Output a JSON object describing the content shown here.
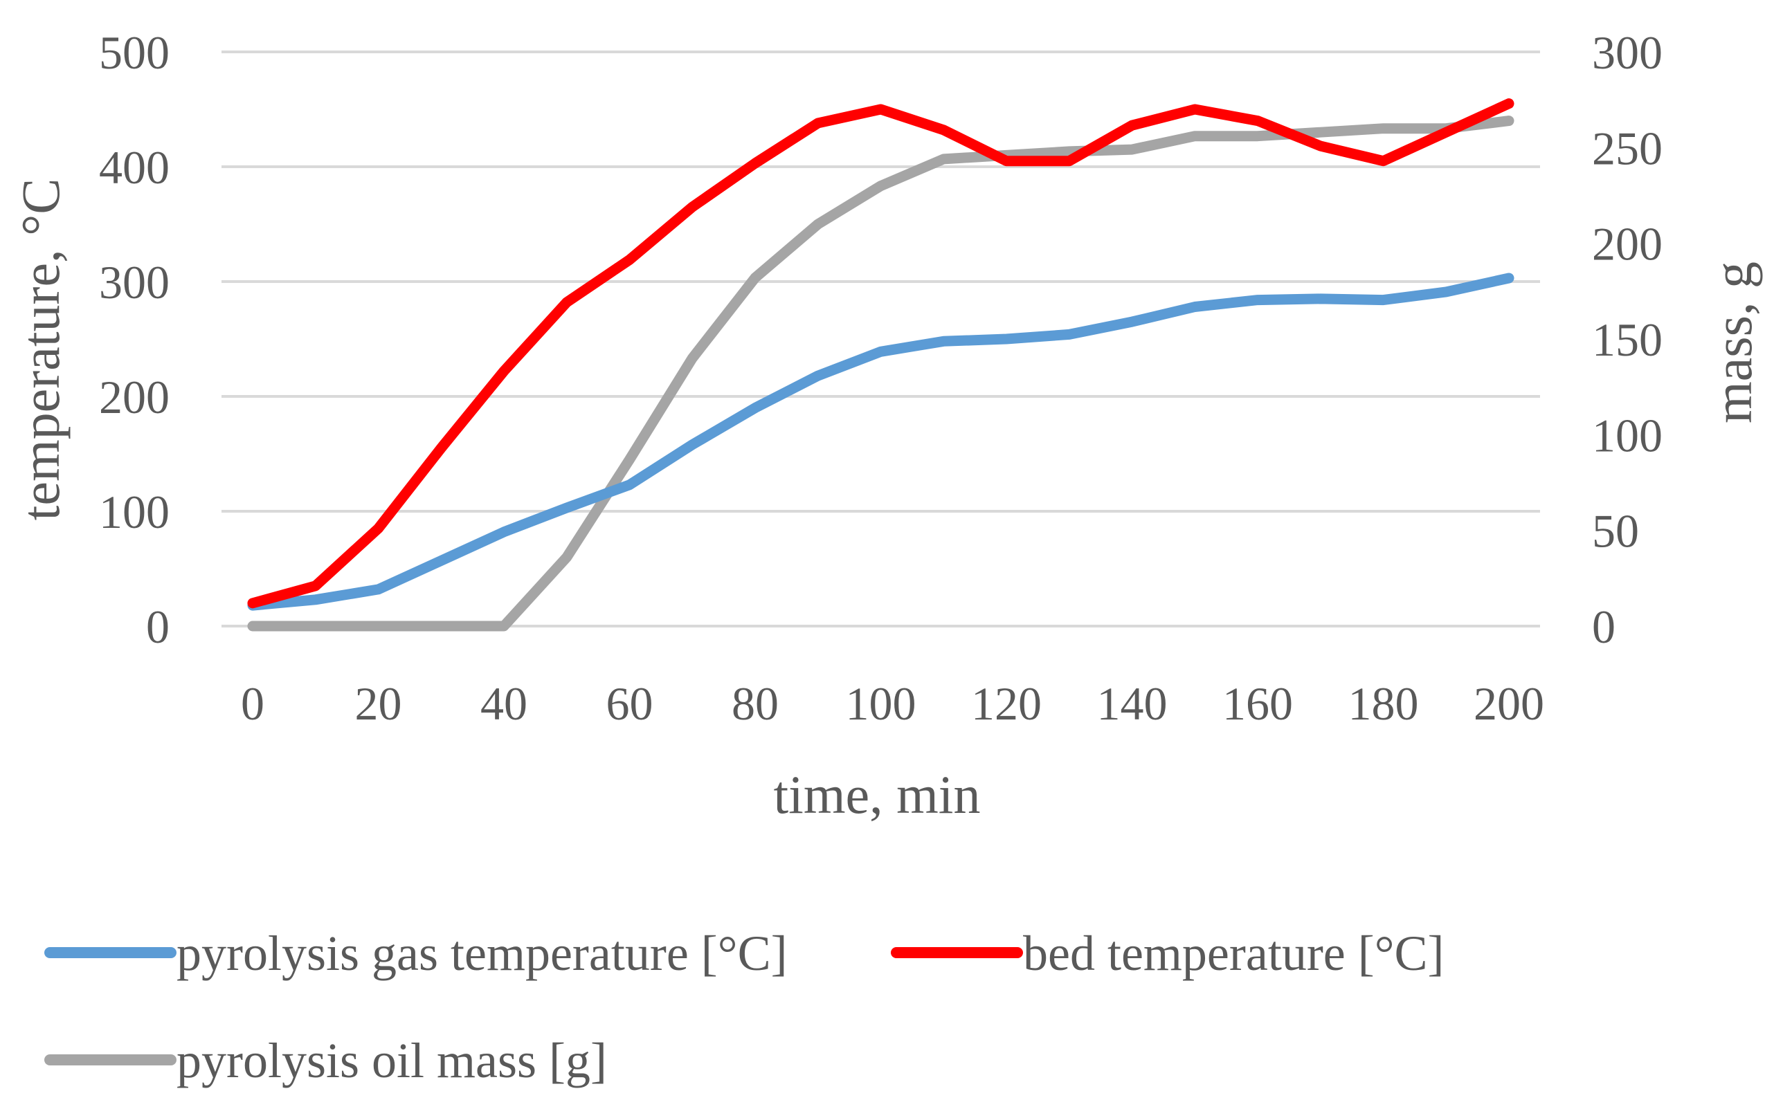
{
  "chart_data": {
    "type": "line",
    "title": "",
    "xlabel": "time, min",
    "ylabel": "temperature, °C",
    "y2label": "mass, g",
    "x": [
      0,
      10,
      20,
      30,
      40,
      50,
      60,
      70,
      80,
      90,
      100,
      110,
      120,
      130,
      140,
      150,
      160,
      170,
      180,
      190,
      200
    ],
    "xticks": [
      0,
      20,
      40,
      60,
      80,
      100,
      120,
      140,
      160,
      180,
      200
    ],
    "xticks_labels": [
      "0",
      "20",
      "40",
      "60",
      "80",
      "100",
      "120",
      "140",
      "160",
      "180",
      "200"
    ],
    "xlim": [
      0,
      200
    ],
    "ylim": [
      0,
      500
    ],
    "yticks": [
      0,
      100,
      200,
      300,
      400,
      500
    ],
    "yticks_labels": [
      "0",
      "100",
      "200",
      "300",
      "400",
      "500"
    ],
    "y2lim": [
      0,
      300
    ],
    "y2ticks": [
      0,
      50,
      100,
      150,
      200,
      250,
      300
    ],
    "y2ticks_labels": [
      "0",
      "50",
      "100",
      "150",
      "200",
      "250",
      "300"
    ],
    "grid": true,
    "legend_position": "bottom",
    "series": [
      {
        "name": "pyrolysis gas temperature [°C]",
        "axis": "left",
        "color": "#5B9BD5",
        "values": [
          18,
          23,
          32,
          57,
          82,
          103,
          123,
          158,
          190,
          218,
          239,
          248,
          250,
          254,
          265,
          278,
          284,
          285,
          284,
          291,
          303
        ]
      },
      {
        "name": "bed temperature [°C]",
        "axis": "left",
        "color": "#FF0000",
        "values": [
          20,
          35,
          85,
          155,
          222,
          282,
          319,
          365,
          403,
          438,
          450,
          432,
          405,
          405,
          436,
          450,
          440,
          418,
          405,
          430,
          455
        ]
      },
      {
        "name": "pyrolysis oil mass [g]",
        "axis": "right",
        "color": "#A5A5A5",
        "values": [
          0,
          0,
          0,
          0,
          0,
          36,
          87,
          140,
          182,
          210,
          230,
          244,
          246,
          248,
          249,
          256,
          256,
          258,
          260,
          260,
          264
        ]
      }
    ]
  }
}
